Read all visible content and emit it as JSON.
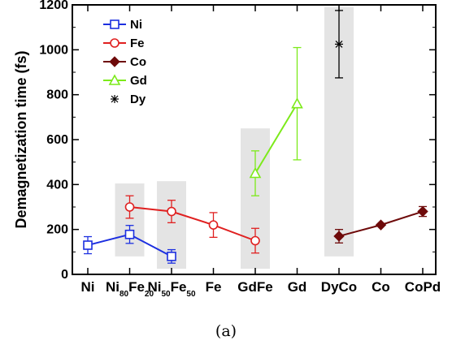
{
  "chart_data": {
    "type": "line",
    "ylabel": "Demagnetization time (fs)",
    "ylim": [
      0,
      1200
    ],
    "yticks": [
      0,
      200,
      400,
      600,
      800,
      1000,
      1200
    ],
    "categories": [
      {
        "base": "Ni",
        "segments": []
      },
      {
        "base": "Ni",
        "segments": [
          {
            "text": "80",
            "sub": true
          },
          {
            "text": "Fe",
            "sub": false
          },
          {
            "text": "20",
            "sub": true
          }
        ]
      },
      {
        "base": "Ni",
        "segments": [
          {
            "text": "50",
            "sub": true
          },
          {
            "text": "Fe",
            "sub": false
          },
          {
            "text": "50",
            "sub": true
          }
        ]
      },
      {
        "base": "Fe",
        "segments": []
      },
      {
        "base": "GdFe",
        "segments": []
      },
      {
        "base": "Gd",
        "segments": []
      },
      {
        "base": "DyCo",
        "segments": []
      },
      {
        "base": "Co",
        "segments": []
      },
      {
        "base": "CoPd",
        "segments": []
      }
    ],
    "shaded_columns": [
      {
        "x": 1,
        "range": [
          80,
          405
        ]
      },
      {
        "x": 2,
        "range": [
          25,
          415
        ]
      },
      {
        "x": 4,
        "range": [
          25,
          650
        ]
      },
      {
        "x": 6,
        "range": [
          80,
          1190
        ]
      }
    ],
    "series": [
      {
        "name": "Ni",
        "color": "#1c2fe0",
        "marker": "square",
        "points": [
          {
            "x": 0,
            "y": 130,
            "err": 38
          },
          {
            "x": 1,
            "y": 178,
            "err": 40
          },
          {
            "x": 2,
            "y": 80,
            "err": 30
          }
        ]
      },
      {
        "name": "Fe",
        "color": "#e02020",
        "marker": "circle",
        "points": [
          {
            "x": 1,
            "y": 300,
            "err": 50
          },
          {
            "x": 2,
            "y": 280,
            "err": 50
          },
          {
            "x": 3,
            "y": 220,
            "err": 55
          },
          {
            "x": 4,
            "y": 150,
            "err": 55
          }
        ]
      },
      {
        "name": "Co",
        "color": "#6e0a0a",
        "marker": "diamond",
        "points": [
          {
            "x": 6,
            "y": 170,
            "err": 30
          },
          {
            "x": 7,
            "y": 220,
            "err": 0
          },
          {
            "x": 8,
            "y": 280,
            "err": 22
          }
        ]
      },
      {
        "name": "Gd",
        "color": "#7cea1a",
        "marker": "triangle",
        "points": [
          {
            "x": 4,
            "y": 450,
            "err": 100
          },
          {
            "x": 5,
            "y": 760,
            "err": 250
          }
        ]
      },
      {
        "name": "Dy",
        "color": "#000000",
        "marker": "star",
        "no_line": true,
        "points": [
          {
            "x": 6,
            "y": 1025,
            "err": 150
          }
        ]
      }
    ],
    "caption": "(a)"
  }
}
